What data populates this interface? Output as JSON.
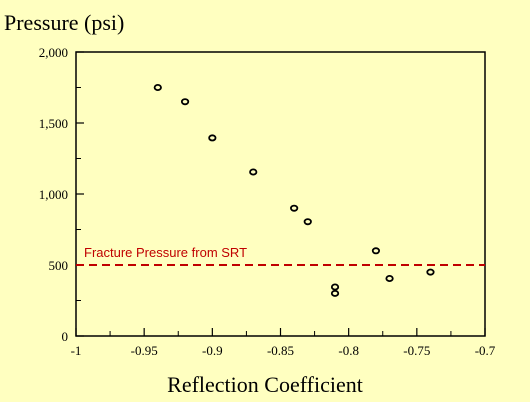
{
  "chart_data": {
    "type": "scatter",
    "title": "",
    "ylabel": "Pressure (psi)",
    "xlabel": "Reflection Coefficient",
    "xlim": [
      -1,
      -0.7
    ],
    "ylim": [
      0,
      2000
    ],
    "x_ticks": [
      -1,
      -0.95,
      -0.9,
      -0.85,
      -0.8,
      -0.75,
      -0.7
    ],
    "x_tick_labels": [
      "-1",
      "-0.95",
      "-0.9",
      "-0.85",
      "-0.8",
      "-0.75",
      "-0.7"
    ],
    "y_ticks": [
      0,
      500,
      1000,
      1500,
      2000
    ],
    "y_tick_labels": [
      "0",
      "500",
      "1,000",
      "1,500",
      "2,000"
    ],
    "grid": false,
    "series": [
      {
        "points": [
          {
            "x": -0.94,
            "y": 1750
          },
          {
            "x": -0.92,
            "y": 1650
          },
          {
            "x": -0.9,
            "y": 1395
          },
          {
            "x": -0.87,
            "y": 1155
          },
          {
            "x": -0.84,
            "y": 900
          },
          {
            "x": -0.83,
            "y": 805
          },
          {
            "x": -0.81,
            "y": 345
          },
          {
            "x": -0.81,
            "y": 300
          },
          {
            "x": -0.78,
            "y": 600
          },
          {
            "x": -0.77,
            "y": 405
          },
          {
            "x": -0.74,
            "y": 450
          }
        ]
      }
    ],
    "reference_line": {
      "label": "Fracture Pressure from SRT",
      "y": 500,
      "color": "#c00000",
      "style": "dashed"
    },
    "marker_color": "#000000"
  }
}
